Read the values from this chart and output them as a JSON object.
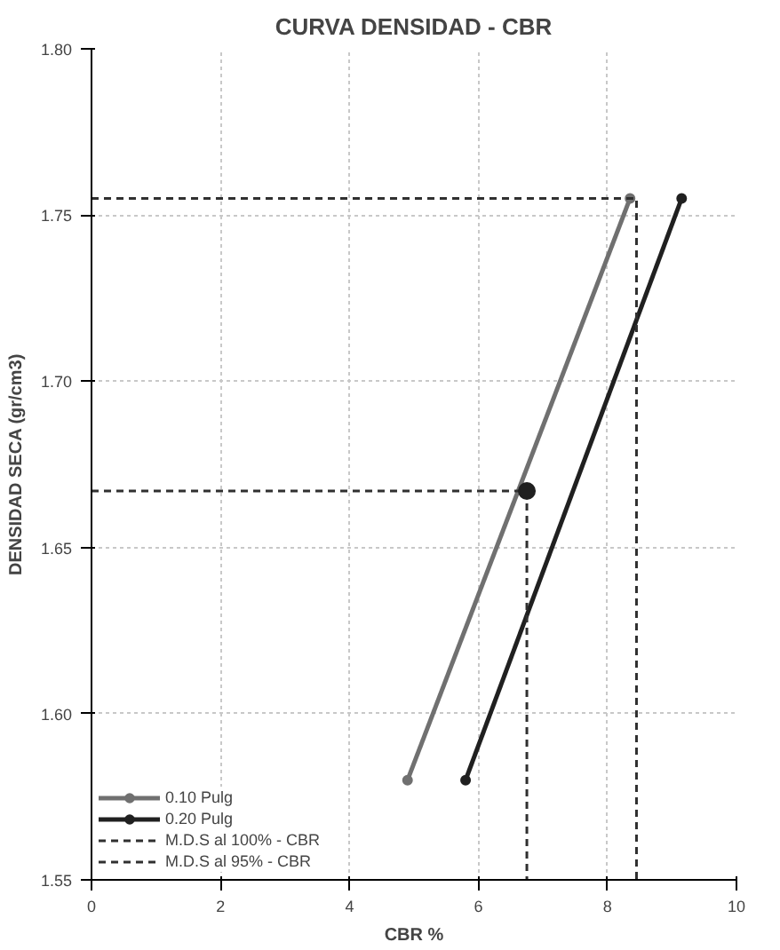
{
  "chart_data": {
    "type": "line",
    "title": "CURVA DENSIDAD - CBR",
    "xlabel": "CBR %",
    "ylabel": "DENSIDAD SECA (gr/cm3)",
    "xlim": [
      0,
      10
    ],
    "xticks": [
      0,
      2,
      4,
      6,
      8,
      10
    ],
    "ylim": [
      1.55,
      1.8
    ],
    "yticks": [
      {
        "value": 1.55,
        "label": "1.55"
      },
      {
        "value": 1.6,
        "label": "1.60"
      },
      {
        "value": 1.65,
        "label": "1.65"
      },
      {
        "value": 1.7,
        "label": "1.70"
      },
      {
        "value": 1.75,
        "label": "1.75"
      },
      {
        "value": 1.8,
        "label": "1.80"
      }
    ],
    "grid": true,
    "legend": "bottom left",
    "series": [
      {
        "name": "0.10 Pulg",
        "color": "#707070",
        "x": [
          4.9,
          8.35
        ],
        "values": [
          1.58,
          1.755
        ],
        "marker": "circle",
        "line_style": "solid"
      },
      {
        "name": "0.20 Pulg",
        "color": "#202020",
        "x": [
          5.8,
          9.15
        ],
        "values": [
          1.58,
          1.755
        ],
        "marker": "circle",
        "line_style": "solid"
      },
      {
        "name": "M.D.S al 100% - CBR",
        "color": "#303030",
        "x": [
          0,
          8.45,
          8.45
        ],
        "values": [
          1.755,
          1.755,
          1.55
        ],
        "marker": "none",
        "line_style": "dashed"
      },
      {
        "name": "M.D.S al 95% - CBR",
        "color": "#303030",
        "x": [
          0,
          6.75,
          6.75
        ],
        "values": [
          1.667,
          1.667,
          1.55
        ],
        "marker": "none",
        "line_style": "dashed"
      },
      {
        "type": "scatter",
        "color": "#202020",
        "x": [
          6.75
        ],
        "values": [
          1.667
        ],
        "marker": "circle"
      }
    ]
  }
}
